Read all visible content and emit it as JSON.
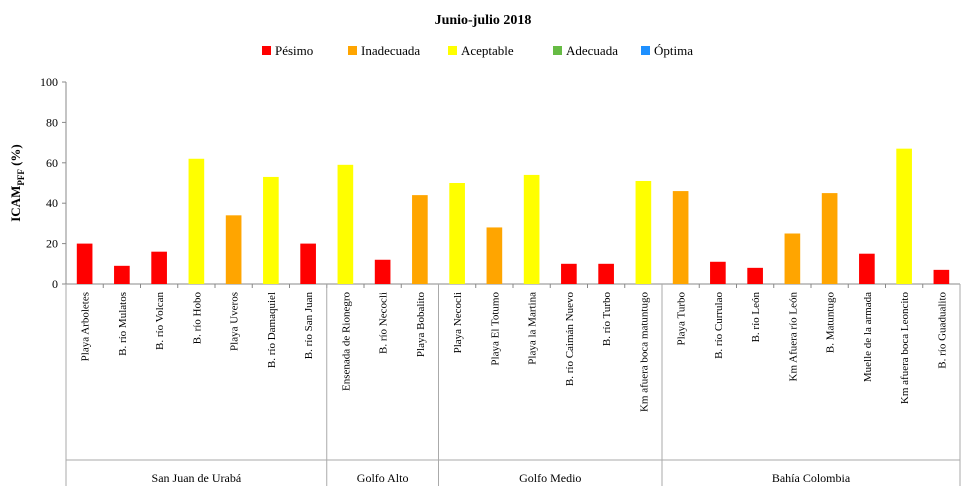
{
  "chart_data": {
    "type": "bar",
    "title": "Junio-julio 2018",
    "ylabel_main": "ICAM",
    "ylabel_sub": "PFF",
    "ylabel_unit": "(%)",
    "ylim": [
      0,
      100
    ],
    "yticks": [
      0,
      20,
      40,
      60,
      80,
      100
    ],
    "grid": false,
    "legend_position": "top",
    "legend": [
      {
        "name": "Pésimo",
        "color": "#FF0000"
      },
      {
        "name": "Inadecuada",
        "color": "#FFA500"
      },
      {
        "name": "Aceptable",
        "color": "#FFFF00"
      },
      {
        "name": "Adecuada",
        "color": "#66BB44"
      },
      {
        "name": "Óptima",
        "color": "#1E90FF"
      }
    ],
    "categories": [
      "Playa Arboletes",
      "B. río Mulatos",
      "B. río Volcan",
      "B. río Hobo",
      "Playa Uveros",
      "B. río Damaquiel",
      "B. río San Juan",
      "Ensenada de Rionegro",
      "B. río Necocli",
      "Playa Bobalito",
      "Playa Necocli",
      "Playa El Totumo",
      "Playa la Martina",
      "B. río Caimán Nuevo",
      "B. río Turbo",
      "Km afuera boca matuntugo",
      "Playa Turbo",
      "B. río Currulao",
      "B. río León",
      "Km Afuera río León",
      "B. Matuntugo",
      "Muelle de la armada",
      "Km afuera boca Leoncito",
      "B. río Guadualito"
    ],
    "values": [
      20,
      9,
      16,
      62,
      34,
      53,
      20,
      59,
      12,
      44,
      50,
      28,
      54,
      10,
      10,
      51,
      46,
      11,
      8,
      25,
      45,
      15,
      67,
      7
    ],
    "classes": [
      "Pésimo",
      "Pésimo",
      "Pésimo",
      "Aceptable",
      "Inadecuada",
      "Aceptable",
      "Pésimo",
      "Aceptable",
      "Pésimo",
      "Inadecuada",
      "Aceptable",
      "Inadecuada",
      "Aceptable",
      "Pésimo",
      "Pésimo",
      "Aceptable",
      "Inadecuada",
      "Pésimo",
      "Pésimo",
      "Inadecuada",
      "Inadecuada",
      "Pésimo",
      "Aceptable",
      "Pésimo"
    ],
    "groups": [
      {
        "name": "San Juan de Urabá",
        "count": 7
      },
      {
        "name": "Golfo Alto",
        "count": 3
      },
      {
        "name": "Golfo Medio",
        "count": 6
      },
      {
        "name": "Bahía Colombia",
        "count": 8
      }
    ]
  }
}
